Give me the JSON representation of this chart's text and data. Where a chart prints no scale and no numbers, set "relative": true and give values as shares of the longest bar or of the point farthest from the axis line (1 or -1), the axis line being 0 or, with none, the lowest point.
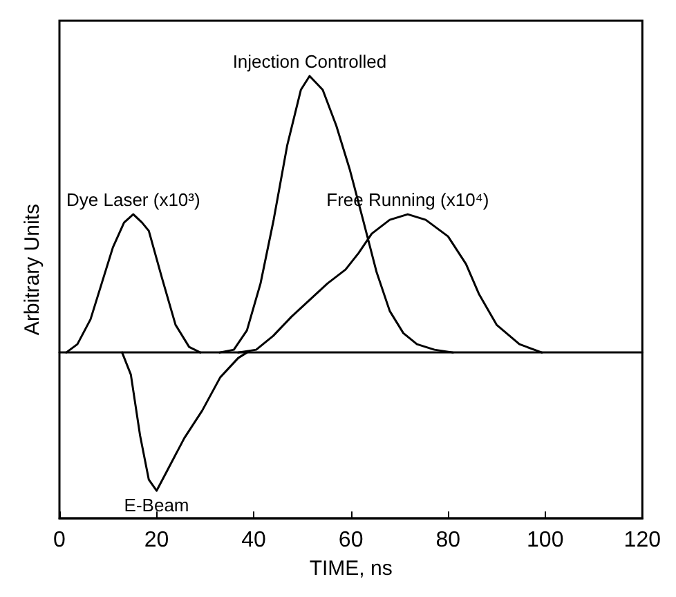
{
  "chart_data": {
    "type": "line",
    "xlabel": "TIME, ns",
    "ylabel": "Arbitrary Units",
    "relative": true,
    "xlim": [
      0,
      120
    ],
    "xticks": [
      0,
      20,
      40,
      60,
      80,
      100,
      120
    ],
    "grid": false,
    "legend": false,
    "marker": "none",
    "line_style": "solid",
    "series": [
      {
        "name": "Dye Laser (x10³)",
        "color": "#000000",
        "x": [
          1.4,
          3.7,
          6.4,
          8.7,
          11,
          13.3,
          15.2,
          17,
          18.4,
          21.1,
          23.9,
          26.7,
          29
        ],
        "values": [
          0,
          0.03,
          0.12,
          0.25,
          0.38,
          0.47,
          0.5,
          0.47,
          0.44,
          0.27,
          0.1,
          0.02,
          0
        ]
      },
      {
        "name": "Injection Controlled",
        "color": "#000000",
        "x": [
          33,
          35.9,
          38.6,
          41.4,
          44.1,
          46.9,
          49.7,
          51.5,
          54.2,
          57,
          59.8,
          62.5,
          65.3,
          68,
          70.8,
          73.6,
          77.2,
          81
        ],
        "values": [
          0,
          0.01,
          0.08,
          0.25,
          0.48,
          0.75,
          0.95,
          1,
          0.95,
          0.82,
          0.66,
          0.48,
          0.29,
          0.15,
          0.07,
          0.03,
          0.01,
          0
        ]
      },
      {
        "name": "Free Running (x10⁴)",
        "color": "#000000",
        "x": [
          36.8,
          40.5,
          44,
          47.8,
          51.5,
          55.2,
          58.9,
          61.6,
          64.3,
          68,
          71.7,
          75.4,
          80,
          83.7,
          86.4,
          90,
          94.7,
          99.3
        ],
        "values": [
          0,
          0.01,
          0.06,
          0.13,
          0.19,
          0.25,
          0.3,
          0.36,
          0.43,
          0.48,
          0.5,
          0.48,
          0.42,
          0.32,
          0.21,
          0.1,
          0.03,
          0
        ]
      },
      {
        "name": "E-Beam",
        "color": "#000000",
        "x": [
          12.9,
          14.7,
          16.6,
          18.4,
          20,
          22.1,
          25.7,
          29.4,
          33.1,
          36.8,
          38.6
        ],
        "values": [
          0,
          -0.08,
          -0.3,
          -0.46,
          -0.5,
          -0.43,
          -0.31,
          -0.21,
          -0.09,
          -0.02,
          0
        ]
      }
    ]
  }
}
